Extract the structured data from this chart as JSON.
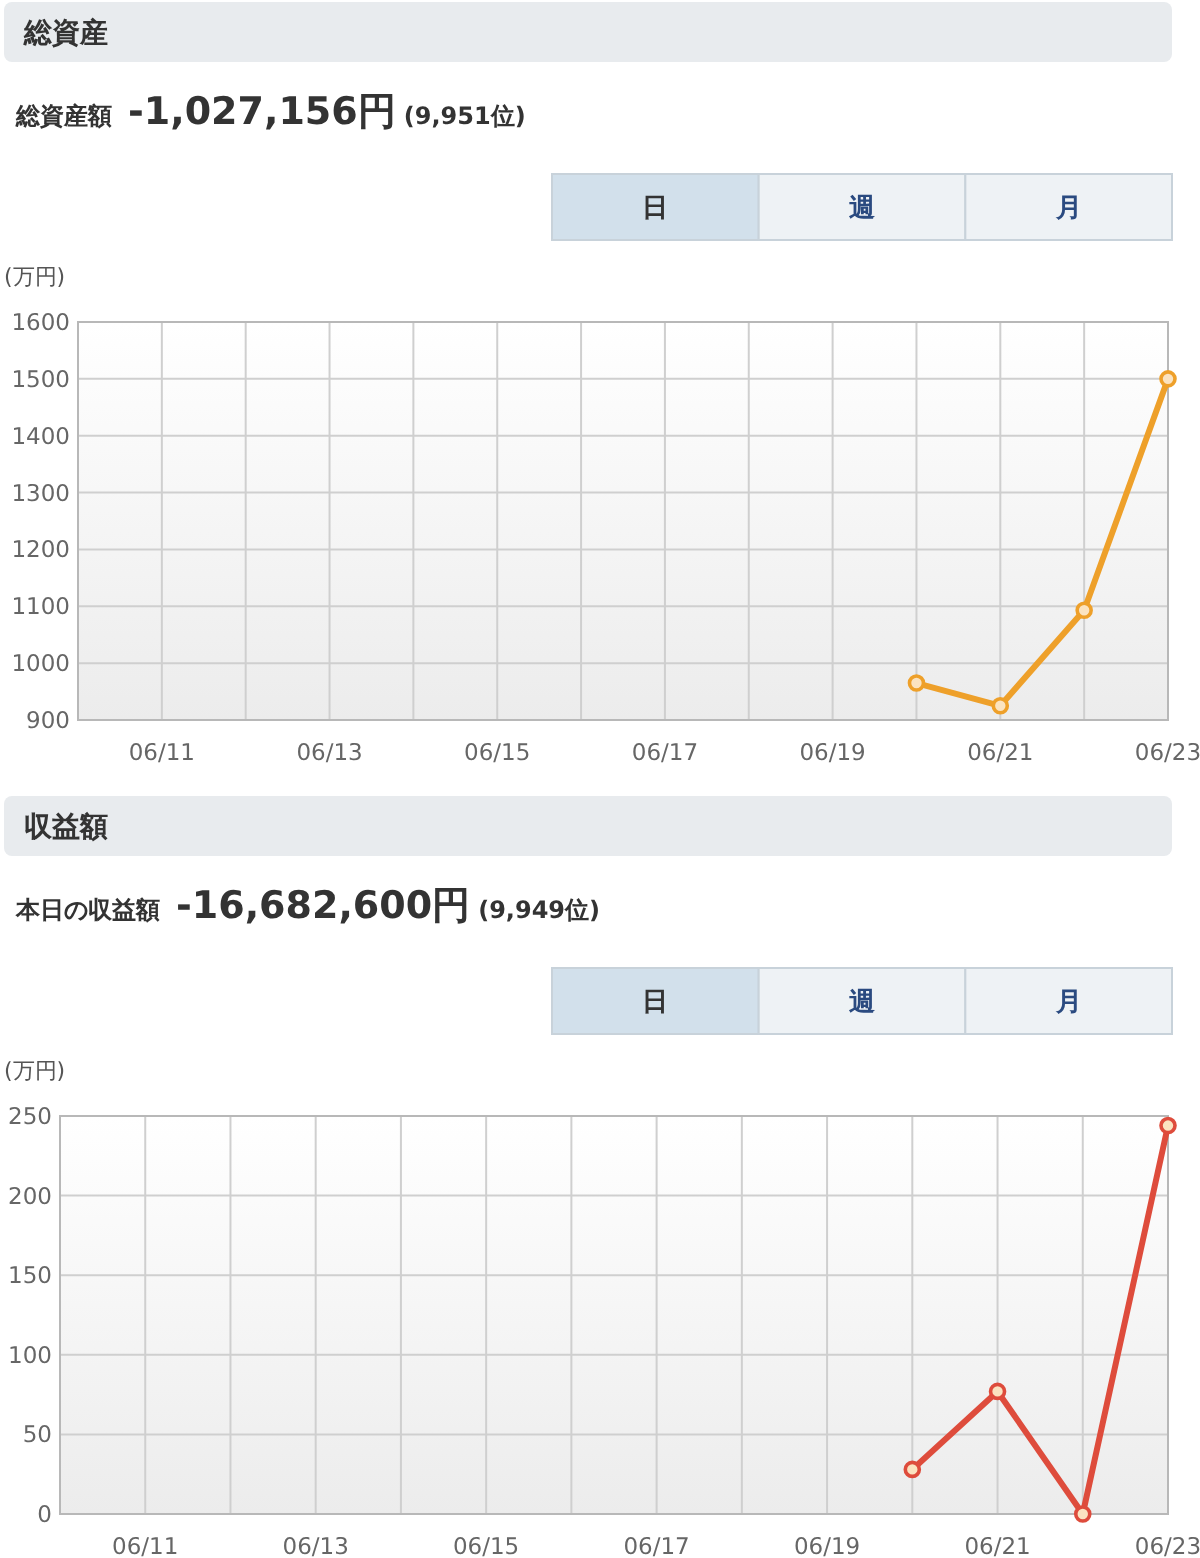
{
  "chart_data": [
    {
      "type": "line",
      "title": "総資産",
      "subtitle": "総資産額",
      "ylabel": "(万円)",
      "annotations": [
        "-1,027,156円",
        "(9,951位)",
        "日",
        "週",
        "月"
      ],
      "x": [
        "--06-20",
        "--06-21",
        "--06-22",
        "--06-23"
      ],
      "series": [
        {
          "color": "#eea02a",
          "values": [
            965,
            925,
            1093,
            1500
          ]
        }
      ],
      "xlim": [
        "--06-10",
        "--06-23"
      ],
      "xticks": [
        {
          "value": "--06-11",
          "label": "06/11"
        },
        {
          "value": "--06-12",
          "label": null
        },
        {
          "value": "--06-13",
          "label": "06/13"
        },
        {
          "value": "--06-14",
          "label": null
        },
        {
          "value": "--06-15",
          "label": "06/15"
        },
        {
          "value": "--06-16",
          "label": null
        },
        {
          "value": "--06-17",
          "label": "06/17"
        },
        {
          "value": "--06-18",
          "label": null
        },
        {
          "value": "--06-19",
          "label": "06/19"
        },
        {
          "value": "--06-20",
          "label": null
        },
        {
          "value": "--06-21",
          "label": "06/21"
        },
        {
          "value": "--06-22",
          "label": null
        },
        {
          "value": "--06-23",
          "label": "06/23"
        }
      ],
      "ylim": [
        900,
        1600
      ],
      "yticks": [
        900,
        1000,
        1100,
        1200,
        1300,
        1400,
        1500,
        1600
      ],
      "grid": true,
      "marker": "circle",
      "line_style": "solid"
    },
    {
      "type": "line",
      "title": "収益額",
      "subtitle": "本日の収益額",
      "ylabel": "(万円)",
      "annotations": [
        "-16,682,600円",
        "(9,949位)",
        "日",
        "週",
        "月"
      ],
      "x": [
        "--06-20",
        "--06-21",
        "--06-22",
        "--06-23"
      ],
      "series": [
        {
          "color": "#de4c3c",
          "values": [
            28,
            77,
            0,
            244
          ]
        }
      ],
      "xlim": [
        "--06-10",
        "--06-23"
      ],
      "xticks": [
        {
          "value": "--06-11",
          "label": "06/11"
        },
        {
          "value": "--06-12",
          "label": null
        },
        {
          "value": "--06-13",
          "label": "06/13"
        },
        {
          "value": "--06-14",
          "label": null
        },
        {
          "value": "--06-15",
          "label": "06/15"
        },
        {
          "value": "--06-16",
          "label": null
        },
        {
          "value": "--06-17",
          "label": "06/17"
        },
        {
          "value": "--06-18",
          "label": null
        },
        {
          "value": "--06-19",
          "label": "06/19"
        },
        {
          "value": "--06-20",
          "label": null
        },
        {
          "value": "--06-21",
          "label": "06/21"
        },
        {
          "value": "--06-22",
          "label": null
        },
        {
          "value": "--06-23",
          "label": "06/23"
        }
      ],
      "ylim": [
        0,
        250
      ],
      "yticks": [
        0,
        50,
        100,
        150,
        200,
        250
      ],
      "grid": true,
      "marker": "circle",
      "line_style": "solid"
    }
  ]
}
